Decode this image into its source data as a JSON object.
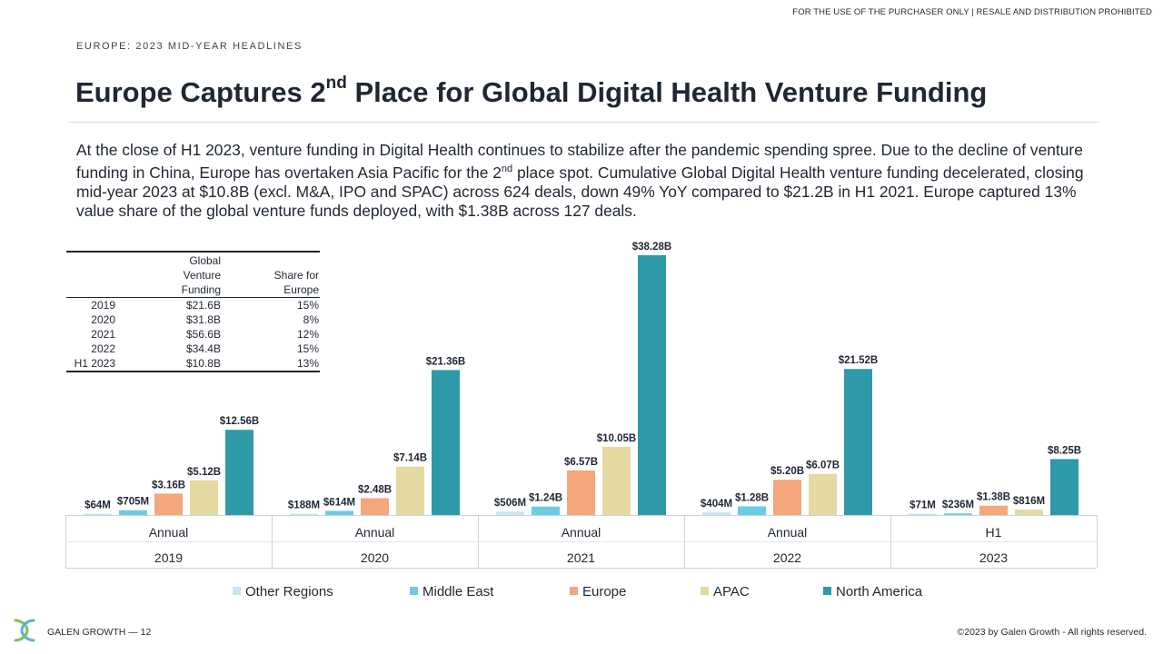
{
  "disclaimer": "FOR THE USE OF THE PURCHASER ONLY | RESALE AND DISTRIBUTION PROHIBITED",
  "section_label": "EUROPE: 2023 MID-YEAR HEADLINES",
  "title": {
    "before": "Europe Captures 2",
    "sup": "nd",
    "after": " Place for Global Digital Health Venture Funding"
  },
  "body": {
    "part1": "At the close of H1 2023, venture funding in Digital Health continues to stabilize after the pandemic spending spree. Due to the decline of venture funding in China, Europe has overtaken Asia Pacific for the 2",
    "sup": "nd",
    "part2": " place spot. Cumulative Global Digital Health venture funding decelerated, closing mid-year 2023 at $10.8B (excl. M&A, IPO and SPAC) across 624 deals, down 49% YoY compared to $21.2B in H1 2021. Europe captured 13% value share of the global venture funds deployed, with $1.38B across 127 deals."
  },
  "summary_table": {
    "headers": [
      "",
      "Global Venture Funding",
      "Share for Europe"
    ],
    "rows": [
      [
        "2019",
        "$21.6B",
        "15%"
      ],
      [
        "2020",
        "$31.8B",
        "8%"
      ],
      [
        "2021",
        "$56.6B",
        "12%"
      ],
      [
        "2022",
        "$34.4B",
        "15%"
      ],
      [
        "H1 2023",
        "$10.8B",
        "13%"
      ]
    ]
  },
  "chart_data": {
    "type": "bar",
    "groups": [
      {
        "period": "Annual",
        "year": "2019"
      },
      {
        "period": "Annual",
        "year": "2020"
      },
      {
        "period": "Annual",
        "year": "2021"
      },
      {
        "period": "Annual",
        "year": "2022"
      },
      {
        "period": "H1",
        "year": "2023"
      }
    ],
    "unit": "USD billions",
    "series": [
      {
        "name": "Other Regions",
        "color": "#c9e6ec",
        "values": [
          0.064,
          0.188,
          0.506,
          0.404,
          0.071
        ],
        "labels": [
          "$64M",
          "$188M",
          "$506M",
          "$404M",
          "$71M"
        ]
      },
      {
        "name": "Middle East",
        "color": "#6bcde3",
        "values": [
          0.705,
          0.614,
          1.24,
          1.28,
          0.236
        ],
        "labels": [
          "$705M",
          "$614M",
          "$1.24B",
          "$1.28B",
          "$236M"
        ]
      },
      {
        "name": "Europe",
        "color": "#f4a77a",
        "values": [
          3.16,
          2.48,
          6.57,
          5.2,
          1.38
        ],
        "labels": [
          "$3.16B",
          "$2.48B",
          "$6.57B",
          "$5.20B",
          "$1.38B"
        ]
      },
      {
        "name": "APAC",
        "color": "#e4d9a0",
        "values": [
          5.12,
          7.14,
          10.05,
          6.07,
          0.816
        ],
        "labels": [
          "$5.12B",
          "$7.14B",
          "$10.05B",
          "$6.07B",
          "$816M"
        ]
      },
      {
        "name": "North America",
        "color": "#2e9aa8",
        "values": [
          12.56,
          21.36,
          38.28,
          21.52,
          8.25
        ],
        "labels": [
          "$12.56B",
          "$21.36B",
          "$38.28B",
          "$21.52B",
          "$8.25B"
        ]
      }
    ]
  },
  "footer": {
    "left": "GALEN GROWTH — 12",
    "right": "©2023 by Galen Growth - All rights reserved."
  }
}
